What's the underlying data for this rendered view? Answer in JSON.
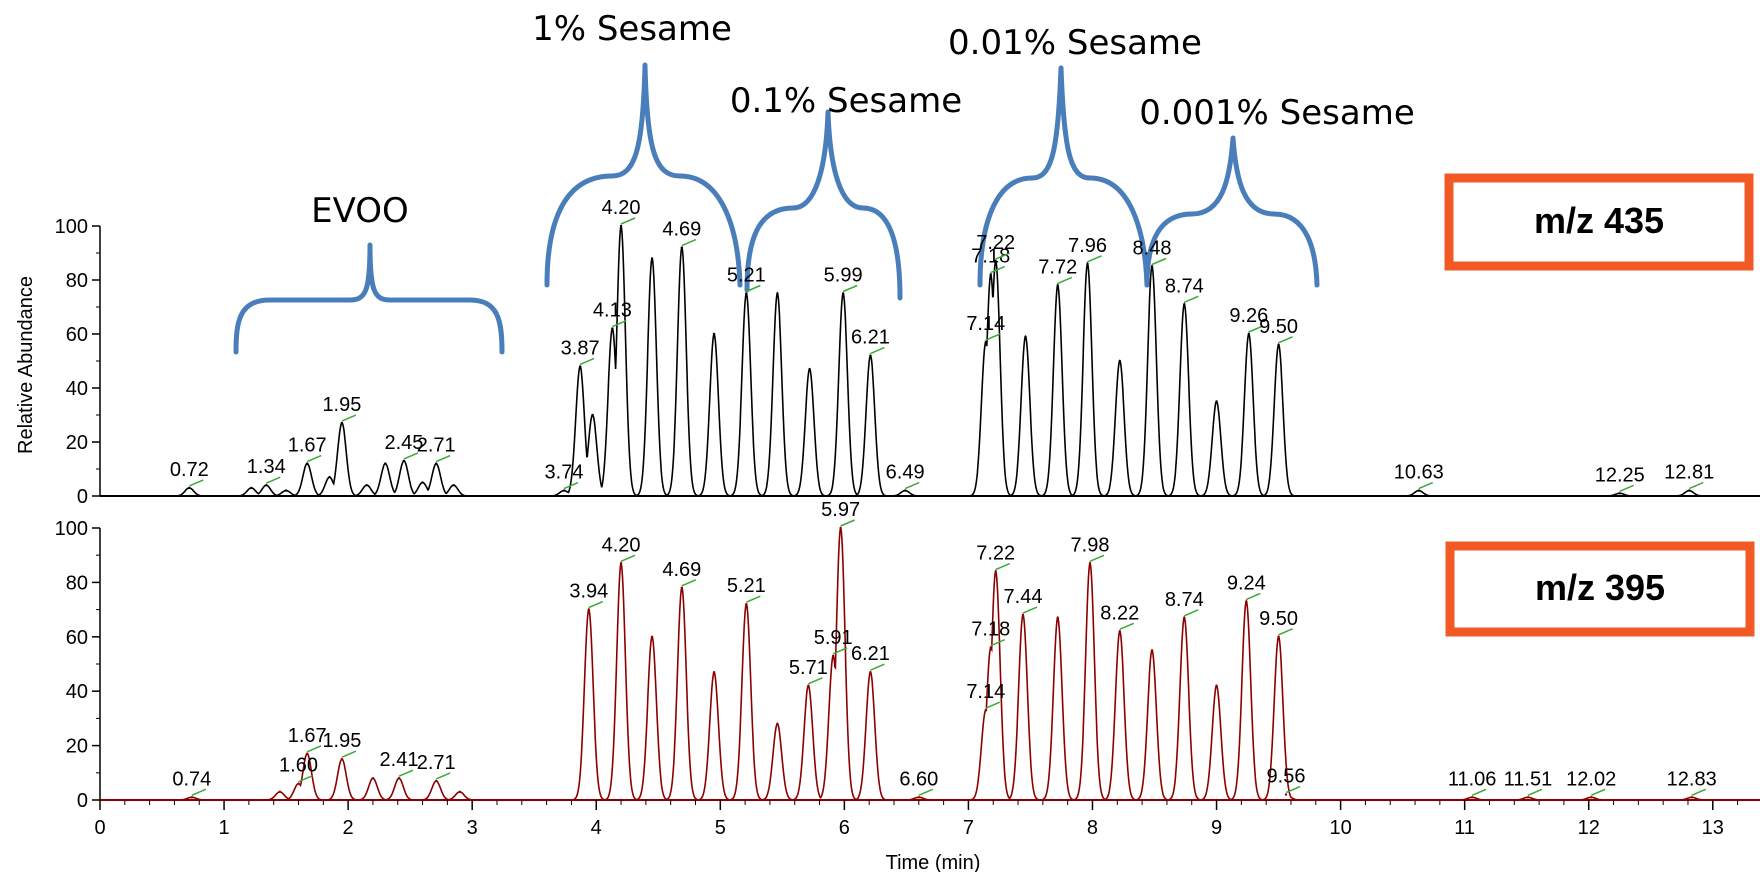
{
  "chart_data": [
    {
      "type": "line",
      "box_label": "m/z 435",
      "ylabel": "Relative Abundance",
      "xlabel": "",
      "xlim": [
        0,
        13.3
      ],
      "ylim": [
        0,
        100
      ],
      "yticks": [
        0,
        20,
        40,
        60,
        80,
        100
      ],
      "color": "#000000",
      "peaks": [
        {
          "x": 0.72,
          "y": 3,
          "label": "0.72"
        },
        {
          "x": 1.22,
          "y": 3
        },
        {
          "x": 1.34,
          "y": 4,
          "label": "1.34"
        },
        {
          "x": 1.5,
          "y": 2
        },
        {
          "x": 1.67,
          "y": 12,
          "label": "1.67"
        },
        {
          "x": 1.85,
          "y": 7
        },
        {
          "x": 1.95,
          "y": 27,
          "label": "1.95"
        },
        {
          "x": 2.15,
          "y": 4
        },
        {
          "x": 2.3,
          "y": 12
        },
        {
          "x": 2.45,
          "y": 13,
          "label": "2.45"
        },
        {
          "x": 2.6,
          "y": 5
        },
        {
          "x": 2.71,
          "y": 12,
          "label": "2.71"
        },
        {
          "x": 2.85,
          "y": 4
        },
        {
          "x": 3.74,
          "y": 2,
          "label": "3.74"
        },
        {
          "x": 3.87,
          "y": 48,
          "label": "3.87"
        },
        {
          "x": 3.97,
          "y": 30
        },
        {
          "x": 4.13,
          "y": 62,
          "label": "4.13"
        },
        {
          "x": 4.2,
          "y": 100,
          "label": "4.20"
        },
        {
          "x": 4.45,
          "y": 88
        },
        {
          "x": 4.69,
          "y": 92,
          "label": "4.69"
        },
        {
          "x": 4.95,
          "y": 60
        },
        {
          "x": 5.21,
          "y": 75,
          "label": "5.21"
        },
        {
          "x": 5.46,
          "y": 75
        },
        {
          "x": 5.72,
          "y": 47
        },
        {
          "x": 5.99,
          "y": 75,
          "label": "5.99"
        },
        {
          "x": 6.21,
          "y": 52,
          "label": "6.21"
        },
        {
          "x": 6.49,
          "y": 2,
          "label": "6.49"
        },
        {
          "x": 7.14,
          "y": 57,
          "label": "7.14"
        },
        {
          "x": 7.18,
          "y": 82,
          "label": "7.18"
        },
        {
          "x": 7.22,
          "y": 87,
          "label": "7.22"
        },
        {
          "x": 7.46,
          "y": 59
        },
        {
          "x": 7.72,
          "y": 78,
          "label": "7.72"
        },
        {
          "x": 7.96,
          "y": 86,
          "label": "7.96"
        },
        {
          "x": 8.22,
          "y": 50
        },
        {
          "x": 8.48,
          "y": 85,
          "label": "8.48"
        },
        {
          "x": 8.74,
          "y": 71,
          "label": "8.74"
        },
        {
          "x": 9.0,
          "y": 35
        },
        {
          "x": 9.26,
          "y": 60,
          "label": "9.26"
        },
        {
          "x": 9.5,
          "y": 56,
          "label": "9.50"
        },
        {
          "x": 10.63,
          "y": 2,
          "label": "10.63"
        },
        {
          "x": 12.25,
          "y": 1,
          "label": "12.25"
        },
        {
          "x": 12.81,
          "y": 2,
          "label": "12.81"
        }
      ],
      "annotations": [
        {
          "text": "EVOO"
        },
        {
          "text": "1% Sesame"
        },
        {
          "text": "0.1% Sesame"
        },
        {
          "text": "0.01% Sesame"
        },
        {
          "text": "0.001% Sesame"
        }
      ]
    },
    {
      "type": "line",
      "box_label": "m/z 395",
      "ylabel": "",
      "xlabel": "Time (min)",
      "xlim": [
        0,
        13.3
      ],
      "ylim": [
        0,
        100
      ],
      "yticks": [
        0,
        20,
        40,
        60,
        80,
        100
      ],
      "xticks": [
        0,
        1,
        2,
        3,
        4,
        5,
        6,
        7,
        8,
        9,
        10,
        11,
        12,
        13
      ],
      "color": "#8b0000",
      "peaks": [
        {
          "x": 0.74,
          "y": 1,
          "label": "0.74"
        },
        {
          "x": 1.45,
          "y": 3
        },
        {
          "x": 1.6,
          "y": 6,
          "label": "1.60"
        },
        {
          "x": 1.67,
          "y": 17,
          "label": "1.67"
        },
        {
          "x": 1.95,
          "y": 15,
          "label": "1.95"
        },
        {
          "x": 2.2,
          "y": 8
        },
        {
          "x": 2.41,
          "y": 8,
          "label": "2.41"
        },
        {
          "x": 2.71,
          "y": 7,
          "label": "2.71"
        },
        {
          "x": 2.9,
          "y": 3
        },
        {
          "x": 3.94,
          "y": 70,
          "label": "3.94"
        },
        {
          "x": 4.2,
          "y": 87,
          "label": "4.20"
        },
        {
          "x": 4.45,
          "y": 60
        },
        {
          "x": 4.69,
          "y": 78,
          "label": "4.69"
        },
        {
          "x": 4.95,
          "y": 47
        },
        {
          "x": 5.21,
          "y": 72,
          "label": "5.21"
        },
        {
          "x": 5.46,
          "y": 28
        },
        {
          "x": 5.71,
          "y": 42,
          "label": "5.71"
        },
        {
          "x": 5.91,
          "y": 53,
          "label": "5.91"
        },
        {
          "x": 5.97,
          "y": 100,
          "label": "5.97"
        },
        {
          "x": 6.21,
          "y": 47,
          "label": "6.21"
        },
        {
          "x": 6.6,
          "y": 1,
          "label": "6.60"
        },
        {
          "x": 7.14,
          "y": 33,
          "label": "7.14"
        },
        {
          "x": 7.18,
          "y": 56,
          "label": "7.18"
        },
        {
          "x": 7.22,
          "y": 84,
          "label": "7.22"
        },
        {
          "x": 7.44,
          "y": 68,
          "label": "7.44"
        },
        {
          "x": 7.72,
          "y": 67
        },
        {
          "x": 7.98,
          "y": 87,
          "label": "7.98"
        },
        {
          "x": 8.22,
          "y": 62,
          "label": "8.22"
        },
        {
          "x": 8.48,
          "y": 55
        },
        {
          "x": 8.74,
          "y": 67,
          "label": "8.74"
        },
        {
          "x": 9.0,
          "y": 42
        },
        {
          "x": 9.24,
          "y": 73,
          "label": "9.24"
        },
        {
          "x": 9.5,
          "y": 60,
          "label": "9.50"
        },
        {
          "x": 9.56,
          "y": 2,
          "label": "9.56"
        },
        {
          "x": 11.06,
          "y": 1,
          "label": "11.06"
        },
        {
          "x": 11.51,
          "y": 1,
          "label": "11.51"
        },
        {
          "x": 12.02,
          "y": 1,
          "label": "12.02"
        },
        {
          "x": 12.83,
          "y": 1,
          "label": "12.83"
        }
      ]
    }
  ]
}
